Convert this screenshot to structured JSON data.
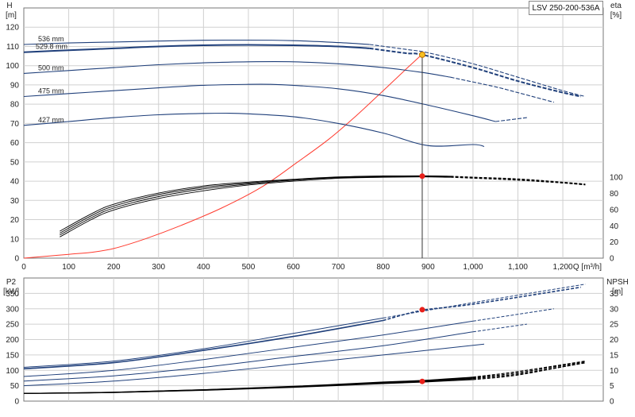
{
  "model_label": "LSV 250-200-536A",
  "colors": {
    "impeller": "#1f3f7a",
    "system": "#ff3b2f",
    "op_marker": "#e8201a",
    "op_fill": "#f6c021",
    "grid": "#d0d0d0",
    "eff": "#000000"
  },
  "chart_data": [
    {
      "type": "line",
      "title": "",
      "xlabel": "Q [m³/h]",
      "x_ticks": [
        "0",
        "100",
        "200",
        "300",
        "400",
        "500",
        "600",
        "700",
        "800",
        "900",
        "1,000",
        "1,100",
        "1,200"
      ],
      "xlim": [
        0,
        1290
      ],
      "ylabel_left": [
        "H",
        "[m]"
      ],
      "ylim_left": [
        0,
        130
      ],
      "yticks_left": [
        "0",
        "10",
        "20",
        "30",
        "40",
        "50",
        "60",
        "70",
        "80",
        "90",
        "100",
        "110",
        "120"
      ],
      "ylabel_right": [
        "eta",
        "[%]"
      ],
      "yticks_right": [
        "0",
        "20",
        "40",
        "60",
        "80",
        "100"
      ],
      "ylim_right_mapping_eta0_to_H": 0,
      "eta_to_H_scale": 0.42,
      "grid": true,
      "impeller_curves": [
        {
          "label": "536 mm",
          "x": [
            0,
            100,
            200,
            300,
            400,
            500,
            600,
            700,
            770,
            850,
            900,
            1000,
            1100,
            1200,
            1250
          ],
          "y": [
            111,
            111.8,
            112.3,
            112.8,
            113.2,
            113.3,
            113,
            112,
            111,
            108.5,
            106.7,
            101,
            94,
            87,
            84
          ],
          "solid_until": 770
        },
        {
          "label": "529.8 mm",
          "x": [
            0,
            100,
            200,
            300,
            400,
            500,
            600,
            700,
            770,
            850,
            887,
            1000,
            1100,
            1200,
            1240
          ],
          "y": [
            107,
            108,
            109,
            110,
            110.6,
            110.8,
            110.6,
            110,
            109,
            106.5,
            105.7,
            99,
            92,
            86,
            84
          ],
          "solid_until": 770
        },
        {
          "label": "500 mm",
          "x": [
            0,
            100,
            200,
            300,
            400,
            500,
            600,
            700,
            800,
            887,
            950,
            1050,
            1100,
            1180
          ],
          "y": [
            96,
            97.5,
            99,
            100.5,
            101.5,
            102,
            102,
            101,
            99,
            96.5,
            94,
            89,
            86,
            81
          ],
          "solid_until": 950
        },
        {
          "label": "475 mm",
          "x": [
            0,
            100,
            200,
            300,
            400,
            500,
            550,
            600,
            700,
            800,
            900,
            1000,
            1050,
            1120
          ],
          "y": [
            84,
            85.5,
            87,
            88.5,
            89.8,
            90.3,
            90.3,
            89.8,
            88,
            84.5,
            79.5,
            74,
            71,
            73
          ],
          "solid_until": 1050
        },
        {
          "label": "427 mm",
          "x": [
            0,
            100,
            200,
            300,
            400,
            450,
            500,
            600,
            700,
            800,
            900,
            1000,
            1025
          ],
          "y": [
            69,
            71,
            73,
            74.5,
            75.2,
            75.3,
            75,
            73.5,
            70,
            65,
            58.5,
            59,
            58
          ],
          "solid_until": 1025
        }
      ],
      "system_curve": {
        "x": [
          0,
          50,
          100,
          150,
          200,
          270,
          350,
          440,
          530,
          610,
          680,
          740,
          800,
          850,
          887
        ],
        "y": [
          0,
          1,
          2,
          3,
          5,
          10,
          17,
          26,
          37,
          50,
          62,
          74,
          87,
          98,
          106
        ]
      },
      "efficiency_curves": {
        "x": [
          80,
          150,
          200,
          300,
          400,
          500,
          600,
          700,
          800,
          887,
          950,
          1000,
          1100,
          1200,
          1250
        ],
        "series": [
          [
            11,
            20,
            25,
            31,
            35,
            38,
            40,
            41.5,
            42,
            42.2,
            42,
            41.5,
            40.5,
            39,
            38
          ],
          [
            12,
            21,
            26,
            32,
            36,
            38.5,
            40.5,
            41.8,
            42.2,
            42.5,
            42.2,
            41.8,
            40.8,
            39.2,
            38.2
          ],
          [
            13,
            22,
            27,
            33,
            36.8,
            39,
            40.8,
            42,
            42.5,
            42.7,
            42.4,
            42,
            41,
            39.3,
            38.3
          ],
          [
            14,
            23,
            28,
            33.8,
            37.5,
            39.5,
            41,
            42.2,
            42.7,
            42.8,
            42.6,
            42.1,
            41.2,
            39.5,
            38.5
          ]
        ],
        "solid_until": 950
      },
      "operating_point": {
        "Q": 887,
        "H": 105.7,
        "eta_mark_H": 42.6
      }
    },
    {
      "type": "line",
      "title": "",
      "xlabel": "",
      "xlim": [
        0,
        1290
      ],
      "ylabel_left": [
        "P2",
        "[kW]"
      ],
      "ylim_left": [
        0,
        400
      ],
      "yticks_left": [
        "0",
        "50",
        "100",
        "150",
        "200",
        "250",
        "300",
        "350"
      ],
      "ylabel_right": [
        "NPSH",
        "[m]"
      ],
      "yticks_right": [
        "0",
        "5",
        "10",
        "15",
        "20",
        "25",
        "30",
        "35"
      ],
      "npsh_to_P2_scale": 10,
      "grid": true,
      "power_curves": [
        {
          "x": [
            0,
            200,
            400,
            600,
            800,
            1000,
            1250
          ],
          "y": [
            110,
            130,
            170,
            220,
            270,
            320,
            380
          ],
          "solid_until": 800
        },
        {
          "x": [
            0,
            200,
            400,
            600,
            800,
            887,
            1000,
            1240
          ],
          "y": [
            105,
            125,
            165,
            210,
            262,
            295,
            315,
            370
          ],
          "solid_until": 800
        },
        {
          "x": [
            0,
            200,
            400,
            600,
            800,
            1000,
            1180
          ],
          "y": [
            80,
            100,
            135,
            175,
            215,
            260,
            300
          ],
          "solid_until": 1000
        },
        {
          "x": [
            0,
            200,
            400,
            600,
            800,
            1000,
            1120
          ],
          "y": [
            65,
            82,
            110,
            145,
            180,
            225,
            250
          ],
          "solid_until": 1000
        },
        {
          "x": [
            0,
            200,
            400,
            600,
            800,
            1025
          ],
          "y": [
            50,
            65,
            90,
            120,
            150,
            185
          ],
          "solid_until": 1025
        }
      ],
      "npsh_curves": {
        "x": [
          0,
          200,
          400,
          600,
          800,
          887,
          1000,
          1100,
          1250
        ],
        "series": [
          [
            25,
            28,
            35,
            45,
            57,
            62,
            70,
            85,
            126
          ],
          [
            25,
            28,
            36,
            46,
            59,
            64,
            73,
            88,
            124
          ],
          [
            25,
            29,
            37,
            47,
            61,
            66,
            76,
            92,
            128
          ],
          [
            25,
            29,
            37,
            48,
            62,
            67,
            78,
            96,
            130
          ]
        ],
        "solid_until": 1000
      },
      "operating_point_power": {
        "Q": 887,
        "P2": 297
      },
      "operating_point_npsh": {
        "Q": 887,
        "P2_scale": 64
      }
    }
  ]
}
